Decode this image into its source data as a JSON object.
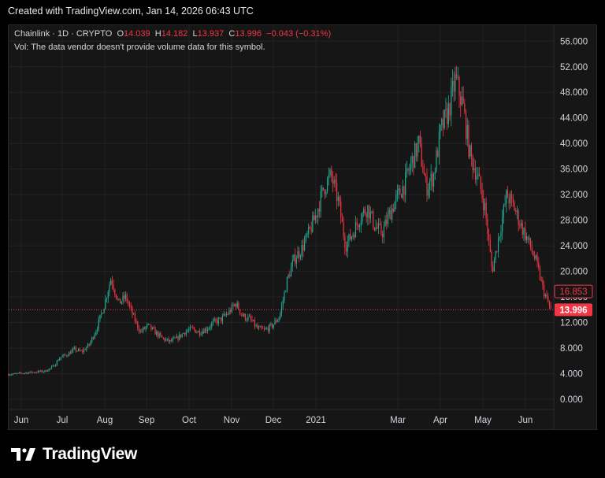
{
  "header": {
    "created": "Created with TradingView.com, Jan 14, 2026 06:43 UTC"
  },
  "legend": {
    "symbol": "Chainlink · 1D · CRYPTO",
    "o_label": "O",
    "o_value": "14.039",
    "h_label": "H",
    "h_value": "14.182",
    "l_label": "L",
    "l_value": "13.937",
    "c_label": "C",
    "c_value": "13.996",
    "change": "−0.043 (−0.31%)",
    "vol": "Vol: The data vendor doesn't provide volume data for this symbol."
  },
  "brand": {
    "name": "TradingView",
    "icon": "tradingview-logo-icon"
  },
  "colors": {
    "up": "#22ab94",
    "down": "#f23645",
    "bg": "#161616",
    "grid": "#232323",
    "text": "#d1d4dc"
  },
  "chart_data": {
    "type": "candlestick",
    "series_name": "Chainlink",
    "ylim": [
      0,
      56
    ],
    "yticks": [
      "0.000",
      "4.000",
      "8.000",
      "12.000",
      "16.000",
      "20.000",
      "24.000",
      "28.000",
      "32.000",
      "36.000",
      "40.000",
      "44.000",
      "48.000",
      "52.000",
      "56.000"
    ],
    "xticks": [
      "Jun",
      "Jul",
      "Aug",
      "Sep",
      "Oct",
      "Nov",
      "Dec",
      "2021",
      "Mar",
      "Apr",
      "May",
      "Jun"
    ],
    "price_labels": [
      {
        "value": 16.853,
        "text": "16.853",
        "style": "outline"
      },
      {
        "value": 13.996,
        "text": "13.996",
        "style": "filled"
      }
    ],
    "last_price_line": 13.996,
    "grid": true,
    "closes": [
      3.9,
      3.95,
      4.1,
      4.2,
      4.3,
      4.4,
      5.0,
      6.5,
      7.0,
      7.8,
      7.4,
      8.5,
      11.0,
      14.5,
      19.0,
      15.0,
      16.0,
      13.0,
      10.5,
      11.5,
      10.5,
      9.5,
      9.0,
      9.5,
      10.5,
      11.0,
      10.5,
      11.0,
      12.0,
      12.5,
      13.5,
      15.0,
      13.0,
      12.5,
      11.0,
      10.8,
      11.5,
      13.0,
      18.5,
      22.0,
      23.5,
      26.0,
      29.0,
      33.0,
      35.0,
      31.0,
      24.0,
      26.0,
      28.5,
      30.0,
      27.0,
      26.0,
      29.0,
      31.5,
      33.5,
      37.0,
      40.0,
      33.0,
      35.0,
      42.0,
      45.0,
      50.0,
      46.0,
      38.0,
      35.0,
      30.0,
      20.0,
      26.0,
      32.0,
      30.0,
      27.0,
      24.5,
      21.5,
      17.0,
      14.0
    ],
    "x_range": [
      "2020-05-24",
      "2021-07-08"
    ]
  }
}
